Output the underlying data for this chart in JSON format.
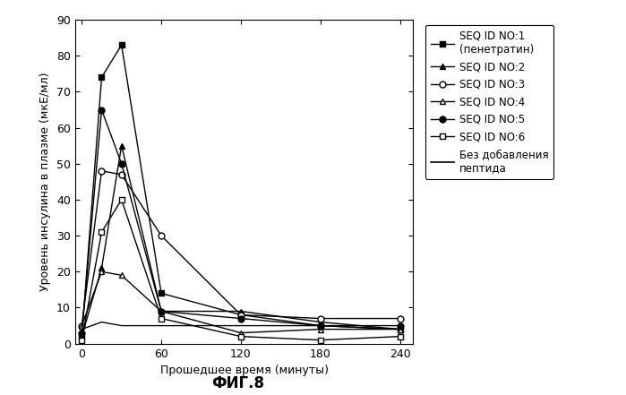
{
  "title": "ФИГ.8",
  "ylabel": "Уровень инсулина в плазме (мкЕ/мл)",
  "xlabel": "Прошедшее время (минуты)",
  "xlim": [
    -5,
    250
  ],
  "ylim": [
    0,
    90
  ],
  "yticks": [
    0,
    10,
    20,
    30,
    40,
    50,
    60,
    70,
    80,
    90
  ],
  "xticks": [
    0,
    60,
    120,
    180,
    240
  ],
  "time_points": [
    0,
    15,
    30,
    60,
    120,
    180,
    240
  ],
  "series": [
    {
      "label": "SEQ ID NO:1\n(пенетратин)",
      "marker": "s",
      "fillstyle": "full",
      "color": "black",
      "values": [
        2,
        74,
        83,
        14,
        8,
        5,
        4
      ]
    },
    {
      "label": "SEQ ID NO:2",
      "marker": "^",
      "fillstyle": "full",
      "color": "black",
      "values": [
        2,
        21,
        55,
        9,
        9,
        6,
        4
      ]
    },
    {
      "label": "SEQ ID NO:3",
      "marker": "o",
      "fillstyle": "none",
      "color": "black",
      "values": [
        5,
        48,
        47,
        30,
        8,
        7,
        7
      ]
    },
    {
      "label": "SEQ ID NO:4",
      "marker": "^",
      "fillstyle": "none",
      "color": "black",
      "values": [
        5,
        20,
        19,
        9,
        3,
        4,
        4
      ]
    },
    {
      "label": "SEQ ID NO:5",
      "marker": "o",
      "fillstyle": "full",
      "color": "black",
      "values": [
        3,
        65,
        50,
        9,
        7,
        5,
        5
      ]
    },
    {
      "label": "SEQ ID NO:6",
      "marker": "s",
      "fillstyle": "none",
      "color": "black",
      "values": [
        1,
        31,
        40,
        7,
        2,
        1,
        2
      ]
    },
    {
      "label": "Без добавления\nпептида",
      "marker": "None",
      "fillstyle": "none",
      "color": "black",
      "values": [
        4,
        6,
        5,
        5,
        5,
        5,
        4
      ]
    }
  ],
  "figsize": [
    6.99,
    4.41
  ],
  "dpi": 100,
  "legend_fontsize": 8.5,
  "axis_fontsize": 9,
  "tick_fontsize": 9
}
